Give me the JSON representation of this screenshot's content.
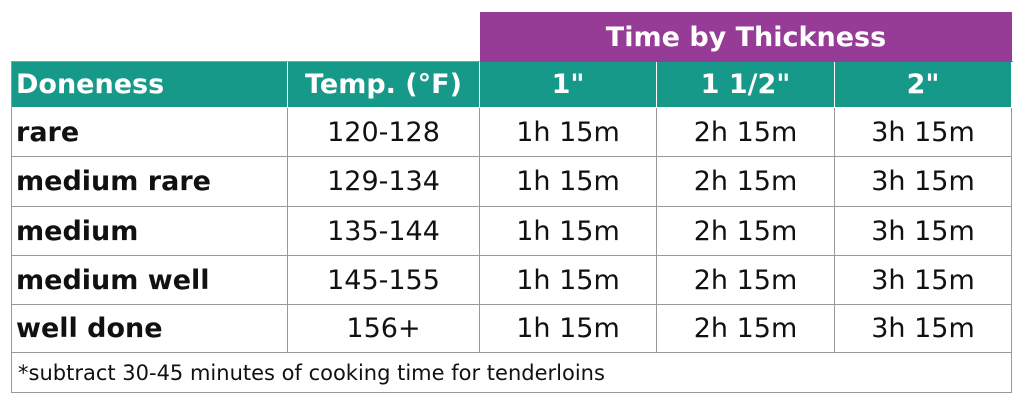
{
  "table": {
    "group_header": "Time by Thickness",
    "headers": [
      "Doneness",
      "Temp. (°F)",
      "1\"",
      "1 1/2\"",
      "2\""
    ],
    "rows": [
      [
        "rare",
        "120-128",
        "1h 15m",
        "2h 15m",
        "3h 15m"
      ],
      [
        "medium rare",
        "129-134",
        "1h 15m",
        "2h 15m",
        "3h 15m"
      ],
      [
        "medium",
        "135-144",
        "1h 15m",
        "2h 15m",
        "3h 15m"
      ],
      [
        "medium well",
        "145-155",
        "1h 15m",
        "2h 15m",
        "3h 15m"
      ],
      [
        "well done",
        "156+",
        "1h 15m",
        "2h 15m",
        "3h 15m"
      ]
    ],
    "footnote": "*subtract 30-45 minutes of cooking time for tenderloins"
  }
}
